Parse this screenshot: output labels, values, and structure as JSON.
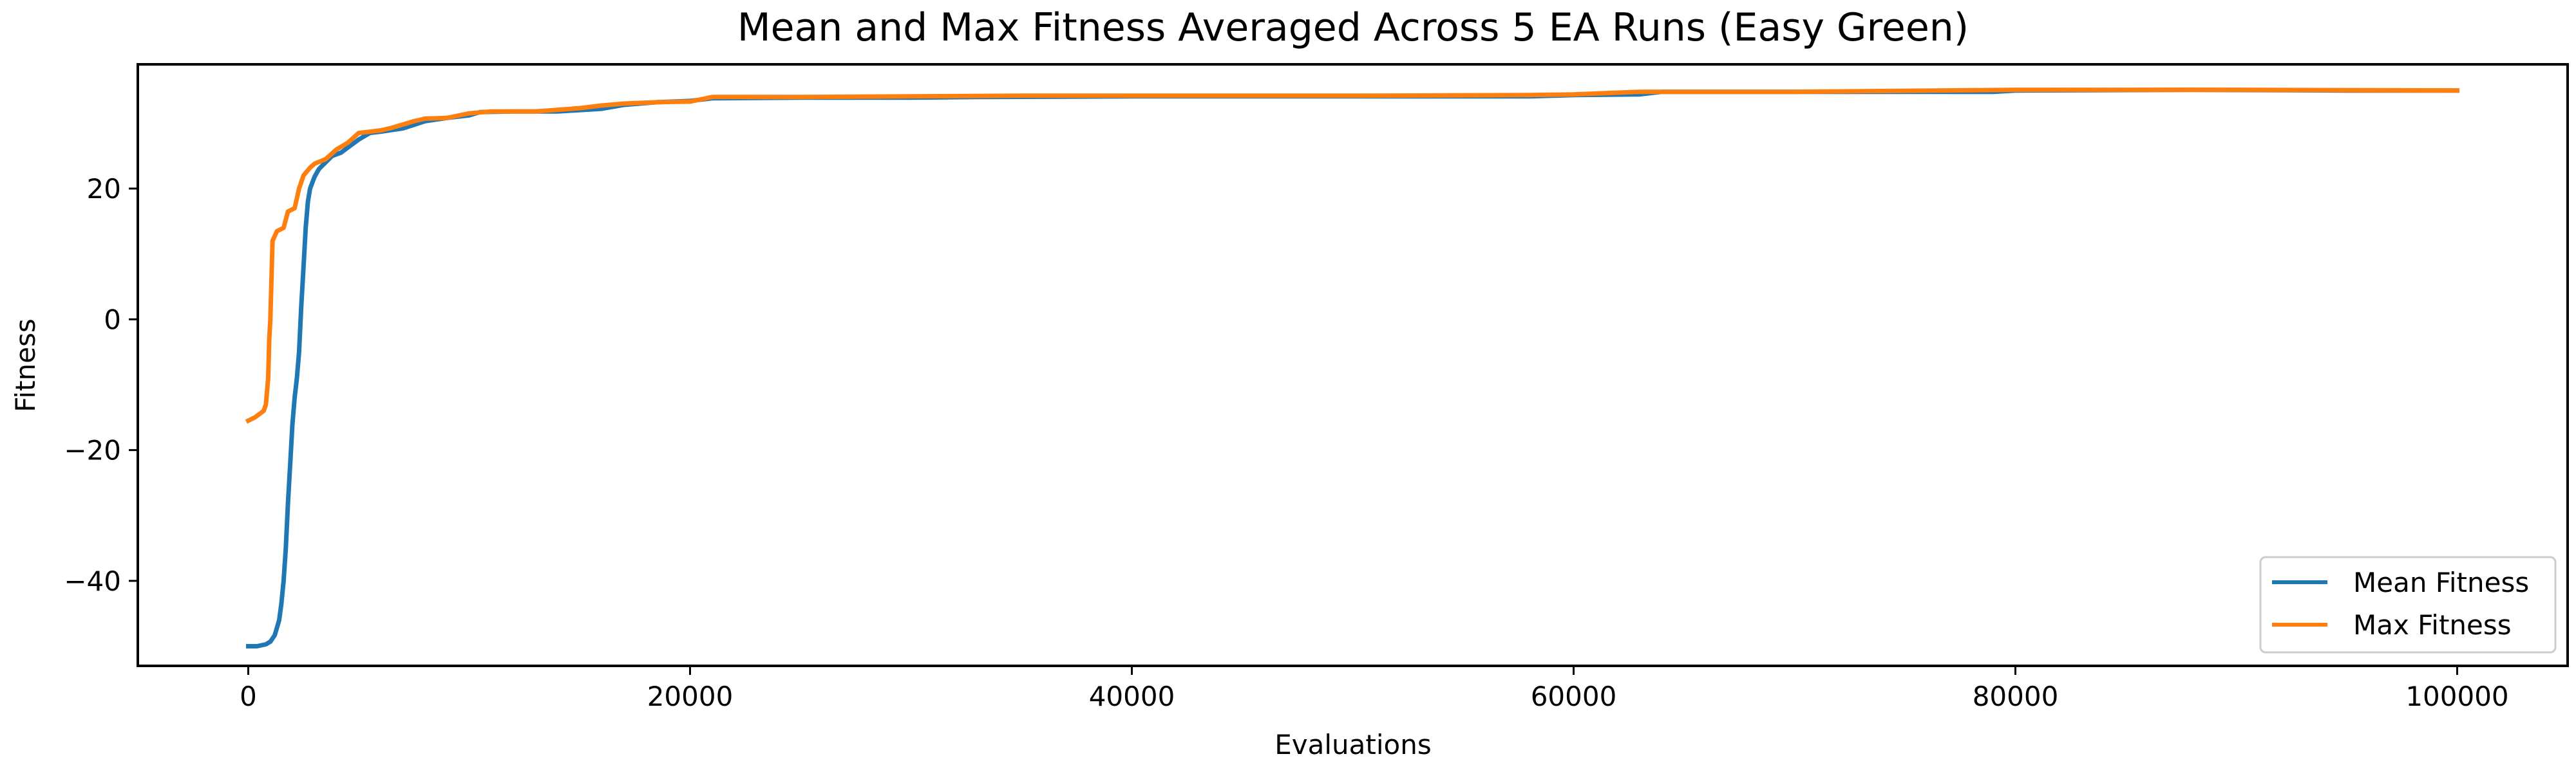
{
  "chart_data": {
    "type": "line",
    "title": "Mean and Max Fitness Averaged Across 5 EA Runs (Easy Green)",
    "xlabel": "Evaluations",
    "ylabel": "Fitness",
    "xlim": [
      -5000,
      105000
    ],
    "ylim": [
      -53,
      39
    ],
    "xticks": [
      0,
      20000,
      40000,
      60000,
      80000,
      100000
    ],
    "yticks": [
      -40,
      -20,
      0,
      20
    ],
    "grid": false,
    "legend_position": "lower-right",
    "series": [
      {
        "name": "Mean Fitness",
        "color": "#1f77b4",
        "points": [
          [
            0,
            -50
          ],
          [
            400,
            -50
          ],
          [
            800,
            -49.7
          ],
          [
            1000,
            -49.3
          ],
          [
            1200,
            -48.3
          ],
          [
            1400,
            -46
          ],
          [
            1500,
            -43.5
          ],
          [
            1600,
            -40
          ],
          [
            1700,
            -35
          ],
          [
            1800,
            -28
          ],
          [
            1900,
            -22
          ],
          [
            2000,
            -16
          ],
          [
            2100,
            -12
          ],
          [
            2200,
            -9
          ],
          [
            2300,
            -5
          ],
          [
            2400,
            2
          ],
          [
            2500,
            8
          ],
          [
            2600,
            14
          ],
          [
            2700,
            18
          ],
          [
            2800,
            20
          ],
          [
            3000,
            21.8
          ],
          [
            3200,
            23
          ],
          [
            3500,
            24
          ],
          [
            3800,
            25
          ],
          [
            4200,
            25.5
          ],
          [
            4600,
            26.5
          ],
          [
            5000,
            27.5
          ],
          [
            5500,
            28.5
          ],
          [
            6000,
            28.7
          ],
          [
            7000,
            29.2
          ],
          [
            8000,
            30.3
          ],
          [
            9000,
            30.8
          ],
          [
            10000,
            31.2
          ],
          [
            10500,
            31.7
          ],
          [
            12000,
            31.8
          ],
          [
            14000,
            31.8
          ],
          [
            16000,
            32.2
          ],
          [
            17000,
            32.8
          ],
          [
            18500,
            33.2
          ],
          [
            20000,
            33.4
          ],
          [
            21000,
            33.8
          ],
          [
            25000,
            33.9
          ],
          [
            30000,
            33.9
          ],
          [
            33000,
            34
          ],
          [
            40000,
            34.1
          ],
          [
            50000,
            34.1
          ],
          [
            58000,
            34.1
          ],
          [
            60000,
            34.3
          ],
          [
            63000,
            34.4
          ],
          [
            64000,
            34.8
          ],
          [
            70000,
            34.8
          ],
          [
            79000,
            34.8
          ],
          [
            80000,
            35
          ],
          [
            88000,
            35.1
          ],
          [
            95000,
            35
          ],
          [
            100000,
            35
          ]
        ]
      },
      {
        "name": "Max Fitness",
        "color": "#ff7f0e",
        "points": [
          [
            0,
            -15.5
          ],
          [
            300,
            -15
          ],
          [
            500,
            -14.5
          ],
          [
            700,
            -14
          ],
          [
            800,
            -13
          ],
          [
            900,
            -9
          ],
          [
            950,
            -3
          ],
          [
            1000,
            0
          ],
          [
            1100,
            12
          ],
          [
            1300,
            13.5
          ],
          [
            1600,
            14
          ],
          [
            1800,
            16.5
          ],
          [
            2100,
            17
          ],
          [
            2300,
            20
          ],
          [
            2500,
            22
          ],
          [
            2800,
            23.2
          ],
          [
            3000,
            23.8
          ],
          [
            3500,
            24.5
          ],
          [
            4000,
            26
          ],
          [
            4500,
            27
          ],
          [
            5000,
            28.5
          ],
          [
            5500,
            28.7
          ],
          [
            6000,
            28.9
          ],
          [
            6500,
            29.3
          ],
          [
            7000,
            29.8
          ],
          [
            7500,
            30.3
          ],
          [
            8000,
            30.7
          ],
          [
            9000,
            30.8
          ],
          [
            10000,
            31.5
          ],
          [
            11000,
            31.8
          ],
          [
            13000,
            31.8
          ],
          [
            15000,
            32.3
          ],
          [
            16000,
            32.7
          ],
          [
            17000,
            33
          ],
          [
            18500,
            33.2
          ],
          [
            20000,
            33.3
          ],
          [
            21000,
            34
          ],
          [
            25000,
            34
          ],
          [
            30000,
            34.1
          ],
          [
            35000,
            34.2
          ],
          [
            40000,
            34.2
          ],
          [
            50000,
            34.2
          ],
          [
            58000,
            34.3
          ],
          [
            60000,
            34.4
          ],
          [
            63000,
            34.8
          ],
          [
            70000,
            34.8
          ],
          [
            80000,
            35.1
          ],
          [
            90000,
            35.1
          ],
          [
            100000,
            35
          ]
        ]
      }
    ]
  }
}
